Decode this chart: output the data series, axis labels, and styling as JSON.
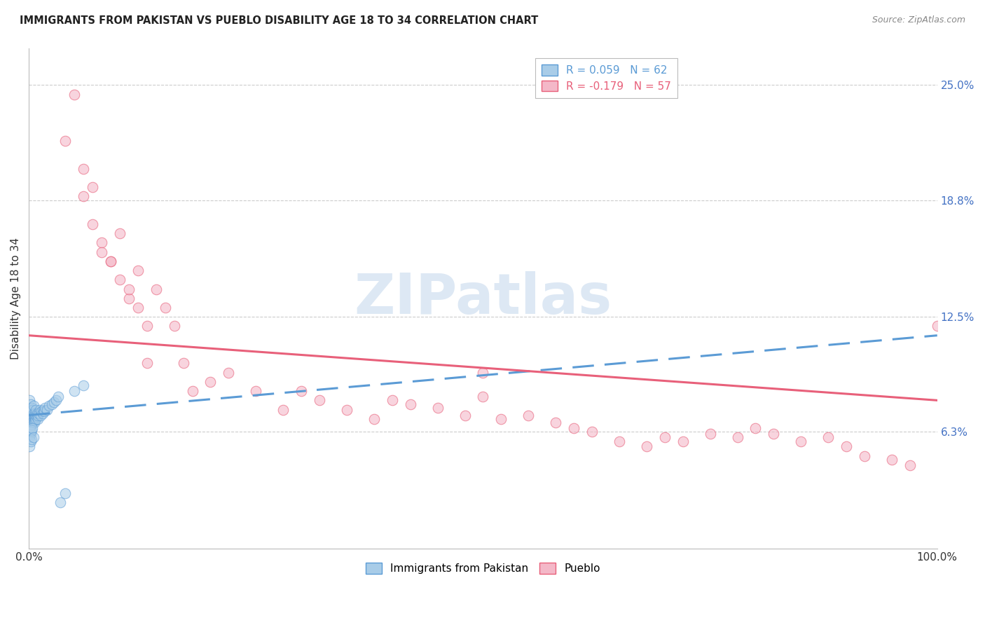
{
  "title": "IMMIGRANTS FROM PAKISTAN VS PUEBLO DISABILITY AGE 18 TO 34 CORRELATION CHART",
  "source": "Source: ZipAtlas.com",
  "ylabel": "Disability Age 18 to 34",
  "xlim": [
    0.0,
    1.0
  ],
  "ylim": [
    0.0,
    0.27
  ],
  "ytick_positions": [
    0.063,
    0.125,
    0.188,
    0.25
  ],
  "ytick_labels": [
    "6.3%",
    "12.5%",
    "18.8%",
    "25.0%"
  ],
  "xtick_positions": [
    0.0,
    1.0
  ],
  "xtick_labels": [
    "0.0%",
    "100.0%"
  ],
  "blue_color": "#a8cce8",
  "blue_edge_color": "#5b9bd5",
  "pink_color": "#f4b8c8",
  "pink_edge_color": "#e8607a",
  "line_blue_color": "#5b9bd5",
  "line_pink_color": "#e8607a",
  "ytick_color": "#4472c4",
  "watermark_color": "#dde8f4",
  "title_color": "#222222",
  "source_color": "#888888",
  "grid_color": "#cccccc",
  "blue_R": 0.059,
  "blue_N": 62,
  "pink_R": -0.179,
  "pink_N": 57,
  "legend1_label": "R = 0.059   N = 62",
  "legend2_label": "R = -0.179   N = 57",
  "bot_legend1_label": "Immigrants from Pakistan",
  "bot_legend2_label": "Pueblo",
  "blue_x": [
    0.001,
    0.001,
    0.001,
    0.001,
    0.001,
    0.002,
    0.002,
    0.002,
    0.002,
    0.002,
    0.003,
    0.003,
    0.003,
    0.003,
    0.003,
    0.004,
    0.004,
    0.004,
    0.004,
    0.005,
    0.005,
    0.005,
    0.005,
    0.006,
    0.006,
    0.006,
    0.007,
    0.007,
    0.007,
    0.008,
    0.008,
    0.008,
    0.009,
    0.009,
    0.01,
    0.01,
    0.011,
    0.012,
    0.013,
    0.014,
    0.015,
    0.016,
    0.017,
    0.018,
    0.02,
    0.022,
    0.025,
    0.028,
    0.03,
    0.032,
    0.001,
    0.001,
    0.002,
    0.002,
    0.003,
    0.003,
    0.004,
    0.005,
    0.05,
    0.06,
    0.04,
    0.035
  ],
  "blue_y": [
    0.072,
    0.068,
    0.075,
    0.065,
    0.08,
    0.07,
    0.073,
    0.066,
    0.078,
    0.062,
    0.071,
    0.069,
    0.074,
    0.067,
    0.076,
    0.07,
    0.072,
    0.068,
    0.075,
    0.071,
    0.073,
    0.069,
    0.077,
    0.07,
    0.072,
    0.068,
    0.071,
    0.073,
    0.069,
    0.07,
    0.072,
    0.075,
    0.071,
    0.073,
    0.07,
    0.072,
    0.073,
    0.075,
    0.072,
    0.074,
    0.073,
    0.075,
    0.074,
    0.076,
    0.075,
    0.077,
    0.078,
    0.079,
    0.08,
    0.082,
    0.06,
    0.055,
    0.063,
    0.058,
    0.064,
    0.059,
    0.065,
    0.06,
    0.085,
    0.088,
    0.03,
    0.025
  ],
  "pink_x": [
    0.04,
    0.05,
    0.06,
    0.07,
    0.07,
    0.08,
    0.08,
    0.09,
    0.1,
    0.1,
    0.11,
    0.12,
    0.12,
    0.13,
    0.14,
    0.15,
    0.16,
    0.17,
    0.18,
    0.2,
    0.22,
    0.25,
    0.28,
    0.3,
    0.32,
    0.35,
    0.38,
    0.4,
    0.42,
    0.45,
    0.48,
    0.5,
    0.52,
    0.55,
    0.58,
    0.6,
    0.62,
    0.65,
    0.68,
    0.7,
    0.72,
    0.75,
    0.78,
    0.8,
    0.82,
    0.85,
    0.88,
    0.9,
    0.92,
    0.95,
    0.97,
    1.0,
    0.06,
    0.09,
    0.11,
    0.13,
    0.5
  ],
  "pink_y": [
    0.22,
    0.245,
    0.205,
    0.195,
    0.175,
    0.165,
    0.16,
    0.155,
    0.145,
    0.17,
    0.135,
    0.15,
    0.13,
    0.12,
    0.14,
    0.13,
    0.12,
    0.1,
    0.085,
    0.09,
    0.095,
    0.085,
    0.075,
    0.085,
    0.08,
    0.075,
    0.07,
    0.08,
    0.078,
    0.076,
    0.072,
    0.082,
    0.07,
    0.072,
    0.068,
    0.065,
    0.063,
    0.058,
    0.055,
    0.06,
    0.058,
    0.062,
    0.06,
    0.065,
    0.062,
    0.058,
    0.06,
    0.055,
    0.05,
    0.048,
    0.045,
    0.12,
    0.19,
    0.155,
    0.14,
    0.1,
    0.095
  ]
}
